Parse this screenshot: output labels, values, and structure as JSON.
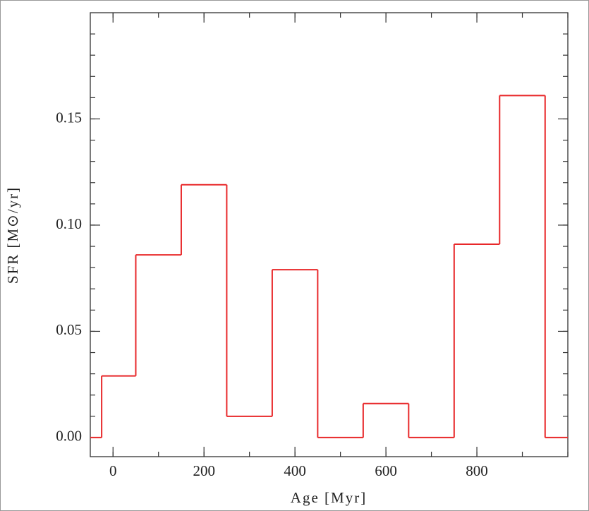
{
  "chart_data": {
    "type": "histogram",
    "xlabel": "Age [Myr]",
    "ylabel": "SFR [M⊙/yr]",
    "bins": [
      -50,
      -25,
      50,
      150,
      250,
      350,
      450,
      550,
      650,
      750,
      850,
      950,
      1000
    ],
    "values": [
      0,
      0.029,
      0.086,
      0.119,
      0.01,
      0.079,
      0,
      0.016,
      0,
      0.091,
      0.161,
      0
    ],
    "color": "#e8282a",
    "xlim": [
      -50,
      1000
    ],
    "xticks": [
      0,
      200,
      400,
      600,
      800
    ],
    "ylim": [
      -0.009,
      0.2
    ],
    "yticks": [
      {
        "value": 0,
        "label": "0.00"
      },
      {
        "value": 0.05,
        "label": "0.05"
      },
      {
        "value": 0.1,
        "label": "0.10"
      },
      {
        "value": 0.15,
        "label": "0.15"
      }
    ]
  }
}
